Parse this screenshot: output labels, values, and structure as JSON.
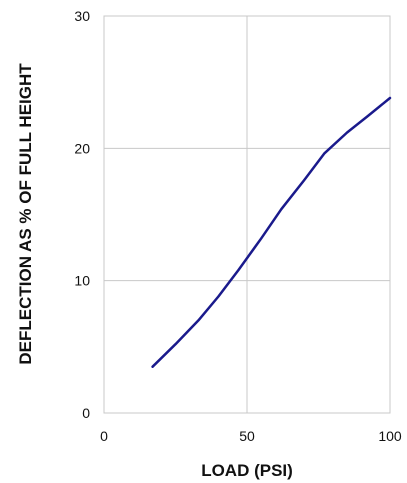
{
  "chart_data": {
    "type": "line",
    "title": "",
    "xlabel": "LOAD (PSI)",
    "ylabel": "DEFLECTION AS % OF FULL HEIGHT",
    "xlim": [
      0,
      100
    ],
    "ylim": [
      0,
      30
    ],
    "x_ticks": [
      "0",
      "50",
      "100"
    ],
    "y_ticks": [
      "0",
      "10",
      "20",
      "30"
    ],
    "grid": true,
    "legend": "none",
    "series": [
      {
        "color": "#1a1a8c",
        "points": [
          [
            17,
            3.5
          ],
          [
            25,
            5.2
          ],
          [
            33,
            7.0
          ],
          [
            40,
            8.8
          ],
          [
            47,
            10.8
          ],
          [
            55,
            13.2
          ],
          [
            62,
            15.4
          ],
          [
            70,
            17.6
          ],
          [
            77,
            19.6
          ],
          [
            85,
            21.2
          ],
          [
            92,
            22.4
          ],
          [
            100,
            23.8
          ]
        ]
      }
    ]
  }
}
